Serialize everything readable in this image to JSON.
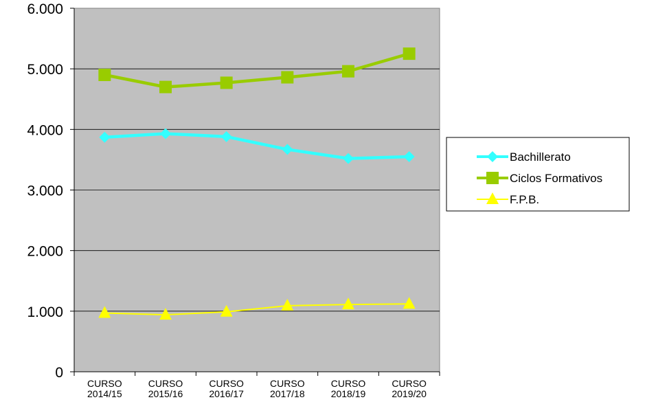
{
  "chart_data": {
    "type": "line",
    "categories": [
      [
        "CURSO",
        "2014/15"
      ],
      [
        "CURSO",
        "2015/16"
      ],
      [
        "CURSO",
        "2016/17"
      ],
      [
        "CURSO",
        "2017/18"
      ],
      [
        "CURSO",
        "2018/19"
      ],
      [
        "CURSO",
        "2019/20"
      ]
    ],
    "y_ticks": [
      "0",
      "1.000",
      "2.000",
      "3.000",
      "4.000",
      "5.000",
      "6.000"
    ],
    "ylim": [
      0,
      6000
    ],
    "grid": true,
    "plot_background": "#c0c0c0",
    "legend_position": "right",
    "series": [
      {
        "name": "Bachillerato",
        "values": [
          3870,
          3930,
          3880,
          3670,
          3520,
          3550
        ],
        "color": "#33ffff",
        "marker": "diamond",
        "line_style": "thick"
      },
      {
        "name": "Ciclos Formativos",
        "values": [
          4900,
          4700,
          4770,
          4860,
          4960,
          5250
        ],
        "color": "#99cc00",
        "marker": "square",
        "line_style": "thick"
      },
      {
        "name": "F.P.B.",
        "values": [
          970,
          940,
          990,
          1090,
          1110,
          1120
        ],
        "color": "#ffff00",
        "marker": "triangle",
        "line_style": "thin"
      }
    ]
  }
}
